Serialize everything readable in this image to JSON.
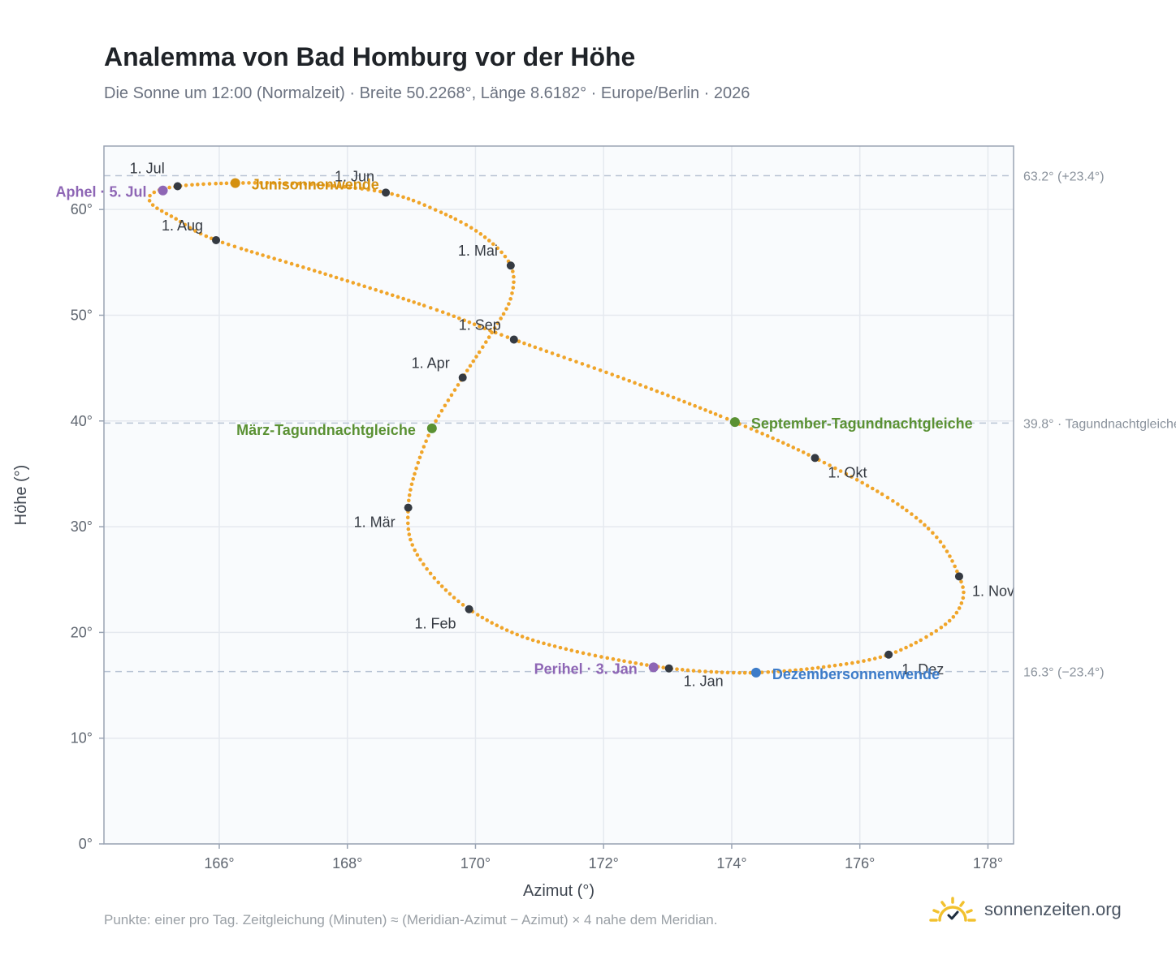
{
  "title": "Analemma von Bad Homburg vor der Höhe",
  "subtitle": "Die Sonne um 12:00 (Normalzeit) · Breite 50.2268°, Länge 8.6182° · Europe/Berlin · 2026",
  "footnote": "Punkte: einer pro Tag. Zeitgleichung (Minuten) ≈ (Meridian-Azimut − Azimut) × 4 nahe dem Meridian.",
  "brand": "sonnenzeiten.org",
  "colors": {
    "curve": "#f0a52a",
    "month_marker": "#353a42",
    "solstice_june": "#d4900f",
    "solstice_december": "#3d7cc9",
    "equinox": "#5a9133",
    "apsis": "#8e66b5",
    "reference_line": "#b9c4d4",
    "plot_bg": "#f9fbfd",
    "grid": "#e5e9ef",
    "frame": "#9aa4b4",
    "brand_sun": "#f2c12e"
  },
  "chart_data": {
    "type": "scatter",
    "xlabel": "Azimut (°)",
    "ylabel": "Höhe (°)",
    "xlim": [
      164.2,
      178.4
    ],
    "ylim": [
      0,
      66
    ],
    "xticks": [
      166,
      168,
      170,
      172,
      174,
      176,
      178
    ],
    "yticks": [
      0,
      10,
      20,
      30,
      40,
      50,
      60
    ],
    "tick_suffix": "°",
    "grid": true,
    "reference_lines": [
      {
        "y": 63.2,
        "label": "63.2° (+23.4°)"
      },
      {
        "y": 39.8,
        "label": "39.8° · Tagundnachtgleiche"
      },
      {
        "y": 16.3,
        "label": "16.3° (−23.4°)"
      }
    ],
    "month_markers": [
      {
        "label": "1. Jan",
        "x": 173.02,
        "y": 16.6
      },
      {
        "label": "1. Feb",
        "x": 169.9,
        "y": 22.2
      },
      {
        "label": "1. Mär",
        "x": 168.95,
        "y": 31.8
      },
      {
        "label": "1. Apr",
        "x": 169.8,
        "y": 44.1
      },
      {
        "label": "1. Mai",
        "x": 170.55,
        "y": 54.7
      },
      {
        "label": "1. Jun",
        "x": 168.6,
        "y": 61.6
      },
      {
        "label": "1. Jul",
        "x": 165.35,
        "y": 62.2
      },
      {
        "label": "1. Aug",
        "x": 165.95,
        "y": 57.1
      },
      {
        "label": "1. Sep",
        "x": 170.6,
        "y": 47.7
      },
      {
        "label": "1. Okt",
        "x": 175.3,
        "y": 36.5
      },
      {
        "label": "1. Nov",
        "x": 177.55,
        "y": 25.3
      },
      {
        "label": "1. Dez",
        "x": 176.45,
        "y": 17.9
      }
    ],
    "events": [
      {
        "label": "Junisonnenwende",
        "x": 166.25,
        "y": 62.5,
        "kind": "solstice_june"
      },
      {
        "label": "Dezembersonnenwende",
        "x": 174.38,
        "y": 16.2,
        "kind": "solstice_december"
      },
      {
        "label": "März-Tagundnachtgleiche",
        "x": 169.32,
        "y": 39.3,
        "kind": "equinox"
      },
      {
        "label": "September-Tagundnachtgleiche",
        "x": 174.05,
        "y": 39.9,
        "kind": "equinox"
      },
      {
        "label": "Aphel · 5. Jul",
        "x": 165.12,
        "y": 61.8,
        "kind": "apsis"
      },
      {
        "label": "Perihel · 3. Jan",
        "x": 172.78,
        "y": 16.7,
        "kind": "apsis"
      }
    ],
    "curve_anchors": [
      {
        "x": 173.02,
        "y": 16.6
      },
      {
        "x": 172.4,
        "y": 17.2
      },
      {
        "x": 171.5,
        "y": 18.3
      },
      {
        "x": 170.65,
        "y": 19.8
      },
      {
        "x": 169.9,
        "y": 22.2
      },
      {
        "x": 169.35,
        "y": 25.2
      },
      {
        "x": 169.0,
        "y": 28.5
      },
      {
        "x": 168.95,
        "y": 31.8
      },
      {
        "x": 169.05,
        "y": 35.0
      },
      {
        "x": 169.32,
        "y": 39.3
      },
      {
        "x": 169.8,
        "y": 44.1
      },
      {
        "x": 170.25,
        "y": 48.3
      },
      {
        "x": 170.55,
        "y": 51.6
      },
      {
        "x": 170.55,
        "y": 54.7
      },
      {
        "x": 170.1,
        "y": 57.6
      },
      {
        "x": 169.4,
        "y": 59.9
      },
      {
        "x": 168.6,
        "y": 61.6
      },
      {
        "x": 167.4,
        "y": 62.4
      },
      {
        "x": 166.25,
        "y": 62.5
      },
      {
        "x": 165.35,
        "y": 62.2
      },
      {
        "x": 164.95,
        "y": 61.5
      },
      {
        "x": 164.95,
        "y": 60.5
      },
      {
        "x": 165.3,
        "y": 59.2
      },
      {
        "x": 165.95,
        "y": 57.1
      },
      {
        "x": 167.6,
        "y": 54.0
      },
      {
        "x": 169.3,
        "y": 50.7
      },
      {
        "x": 170.6,
        "y": 47.7
      },
      {
        "x": 172.4,
        "y": 43.8
      },
      {
        "x": 174.05,
        "y": 39.9
      },
      {
        "x": 175.3,
        "y": 36.5
      },
      {
        "x": 176.5,
        "y": 32.5
      },
      {
        "x": 177.2,
        "y": 29.0
      },
      {
        "x": 177.55,
        "y": 25.3
      },
      {
        "x": 177.6,
        "y": 23.0
      },
      {
        "x": 177.3,
        "y": 20.6
      },
      {
        "x": 176.45,
        "y": 17.9
      },
      {
        "x": 175.4,
        "y": 16.7
      },
      {
        "x": 174.38,
        "y": 16.2
      },
      {
        "x": 173.6,
        "y": 16.3
      },
      {
        "x": 173.02,
        "y": 16.6
      }
    ]
  }
}
